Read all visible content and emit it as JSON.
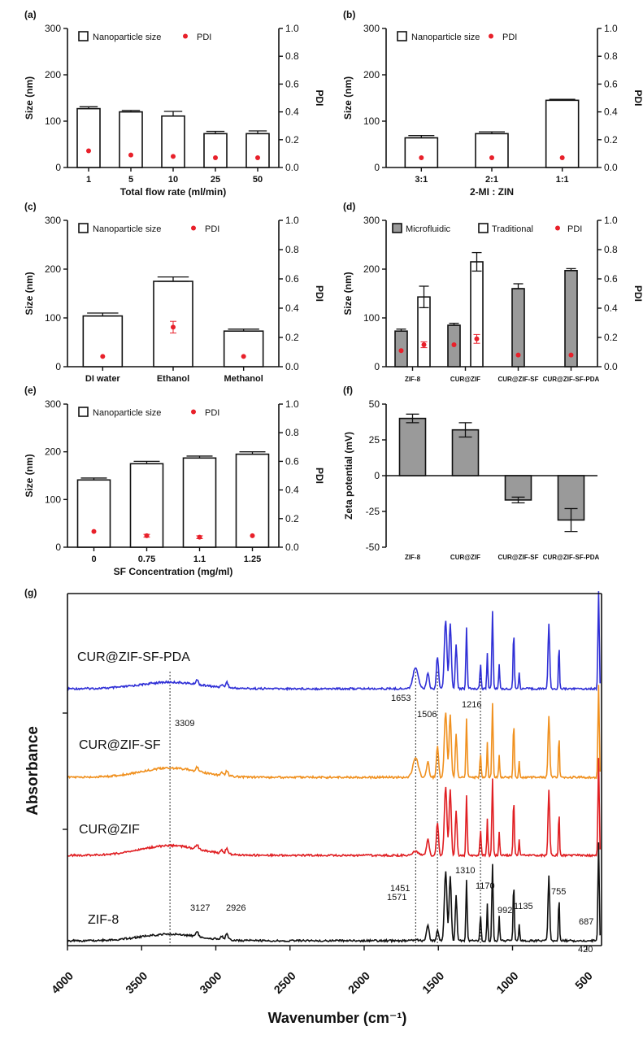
{
  "chart_data": [
    {
      "panel": "(a)",
      "type": "bar",
      "categories": [
        "1",
        "5",
        "10",
        "25",
        "50"
      ],
      "series": [
        {
          "name": "Nanoparticle size",
          "values": [
            127,
            120,
            111,
            73,
            73
          ],
          "errors": [
            4,
            3,
            10,
            5,
            6
          ]
        },
        {
          "name": "PDI",
          "values": [
            0.12,
            0.09,
            0.08,
            0.07,
            0.07
          ],
          "errors": [
            0,
            0,
            0,
            0,
            0
          ]
        }
      ],
      "xlabel": "Total flow rate (ml/min)",
      "ylabel": "Size (nm)",
      "y2label": "PDI",
      "ylim": [
        0,
        300
      ],
      "y2lim": [
        0,
        1.0
      ],
      "yticks": [
        "0",
        "100",
        "200",
        "300"
      ],
      "y2ticks": [
        "0.0",
        "0.2",
        "0.4",
        "0.6",
        "0.8",
        "1.0"
      ],
      "legend": [
        "Nanoparticle size",
        "PDI"
      ]
    },
    {
      "panel": "(b)",
      "type": "bar",
      "categories": [
        "3:1",
        "2:1",
        "1:1"
      ],
      "series": [
        {
          "name": "Nanoparticle size",
          "values": [
            64,
            73,
            145
          ],
          "errors": [
            5,
            4,
            2
          ]
        },
        {
          "name": "PDI",
          "values": [
            0.07,
            0.07,
            0.07
          ],
          "errors": [
            0,
            0,
            0
          ]
        }
      ],
      "xlabel": "2-MI : ZIN",
      "ylabel": "Size (nm)",
      "y2label": "PDI",
      "ylim": [
        0,
        300
      ],
      "y2lim": [
        0,
        1.0
      ],
      "yticks": [
        "0",
        "100",
        "200",
        "300"
      ],
      "y2ticks": [
        "0.0",
        "0.2",
        "0.4",
        "0.6",
        "0.8",
        "1.0"
      ],
      "legend": [
        "Nanoparticle size",
        "PDI"
      ]
    },
    {
      "panel": "(c)",
      "type": "bar",
      "categories": [
        "DI water",
        "Ethanol",
        "Methanol"
      ],
      "series": [
        {
          "name": "Nanoparticle size",
          "values": [
            104,
            175,
            73
          ],
          "errors": [
            6,
            9,
            4
          ]
        },
        {
          "name": "PDI",
          "values": [
            0.07,
            0.27,
            0.07
          ],
          "errors": [
            0,
            0.04,
            0
          ]
        }
      ],
      "xlabel": "",
      "ylabel": "Size (nm)",
      "y2label": "PDI",
      "ylim": [
        0,
        300
      ],
      "y2lim": [
        0,
        1.0
      ],
      "yticks": [
        "0",
        "100",
        "200",
        "300"
      ],
      "y2ticks": [
        "0.0",
        "0.2",
        "0.4",
        "0.6",
        "0.8",
        "1.0"
      ],
      "legend": [
        "Nanoparticle size",
        "PDI"
      ]
    },
    {
      "panel": "(d)",
      "type": "bar",
      "categories": [
        "ZIF-8",
        "CUR@ZIF",
        "CUR@ZIF-SF",
        "CUR@ZIF-SF-PDA"
      ],
      "series": [
        {
          "name": "Microfluidic",
          "values": [
            73,
            85,
            160,
            197
          ],
          "errors": [
            4,
            4,
            10,
            4
          ]
        },
        {
          "name": "Traditional",
          "values": [
            143,
            215,
            null,
            null
          ],
          "errors": [
            22,
            19,
            null,
            null
          ]
        },
        {
          "name": "PDI",
          "points": [
            {
              "group": "ZIF-8",
              "bar": "Microfluidic",
              "value": 0.11,
              "error": 0
            },
            {
              "group": "ZIF-8",
              "bar": "Traditional",
              "value": 0.15,
              "error": 0.02
            },
            {
              "group": "CUR@ZIF",
              "bar": "Microfluidic",
              "value": 0.15,
              "error": 0
            },
            {
              "group": "CUR@ZIF",
              "bar": "Traditional",
              "value": 0.19,
              "error": 0.03
            },
            {
              "group": "CUR@ZIF-SF",
              "bar": "Microfluidic",
              "value": 0.08,
              "error": 0
            },
            {
              "group": "CUR@ZIF-SF-PDA",
              "bar": "Microfluidic",
              "value": 0.08,
              "error": 0
            }
          ]
        }
      ],
      "xlabel": "",
      "ylabel": "Size (nm)",
      "y2label": "PDI",
      "ylim": [
        0,
        300
      ],
      "y2lim": [
        0,
        1.0
      ],
      "yticks": [
        "0",
        "100",
        "200",
        "300"
      ],
      "y2ticks": [
        "0.0",
        "0.2",
        "0.4",
        "0.6",
        "0.8",
        "1.0"
      ],
      "legend": [
        "Microfluidic",
        "Traditional",
        "PDI"
      ]
    },
    {
      "panel": "(e)",
      "type": "bar",
      "categories": [
        "0",
        "0.75",
        "1.1",
        "1.25"
      ],
      "series": [
        {
          "name": "Nanoparticle size",
          "values": [
            141,
            175,
            187,
            195
          ],
          "errors": [
            4,
            5,
            4,
            5
          ]
        },
        {
          "name": "PDI",
          "values": [
            0.11,
            0.08,
            0.07,
            0.08
          ],
          "errors": [
            0,
            0.01,
            0.01,
            0
          ]
        }
      ],
      "xlabel": "SF Concentration (mg/ml)",
      "ylabel": "Size (nm)",
      "y2label": "PDI",
      "ylim": [
        0,
        300
      ],
      "y2lim": [
        0,
        1.0
      ],
      "yticks": [
        "0",
        "100",
        "200",
        "300"
      ],
      "y2ticks": [
        "0.0",
        "0.2",
        "0.4",
        "0.6",
        "0.8",
        "1.0"
      ],
      "legend": [
        "Nanoparticle size",
        "PDI"
      ]
    },
    {
      "panel": "(f)",
      "type": "bar",
      "categories": [
        "ZIF-8",
        "CUR@ZIF",
        "CUR@ZIF-SF",
        "CUR@ZIF-SF-PDA"
      ],
      "series": [
        {
          "name": "Zeta potential",
          "values": [
            40,
            32,
            -17,
            -31
          ],
          "errors": [
            3,
            5,
            2,
            8
          ]
        }
      ],
      "xlabel": "",
      "ylabel": "Zeta potential (mV)",
      "ylim": [
        -50,
        50
      ],
      "yticks": [
        "-50",
        "-25",
        "0",
        "25",
        "50"
      ]
    },
    {
      "panel": "(g)",
      "type": "line",
      "xlabel": "Wavenumber (cm⁻¹)",
      "ylabel": "Absorbance",
      "xlim": [
        4000,
        400
      ],
      "xticks": [
        "4000",
        "3500",
        "3000",
        "2500",
        "2000",
        "1500",
        "1000",
        "500"
      ],
      "series": [
        {
          "name": "CUR@ZIF-SF-PDA",
          "color": "#2f2fd6"
        },
        {
          "name": "CUR@ZIF-SF",
          "color": "#f0901e"
        },
        {
          "name": "CUR@ZIF",
          "color": "#e01e22"
        },
        {
          "name": "ZIF-8",
          "color": "#111111"
        }
      ],
      "reference_lines": [
        3309,
        1653,
        1506,
        1216
      ],
      "annotations": [
        "3309",
        "1653",
        "1506",
        "1216",
        "1451",
        "1310",
        "1170",
        "1135",
        "992",
        "755",
        "687",
        "420",
        "3127",
        "2926",
        "1571"
      ]
    }
  ]
}
